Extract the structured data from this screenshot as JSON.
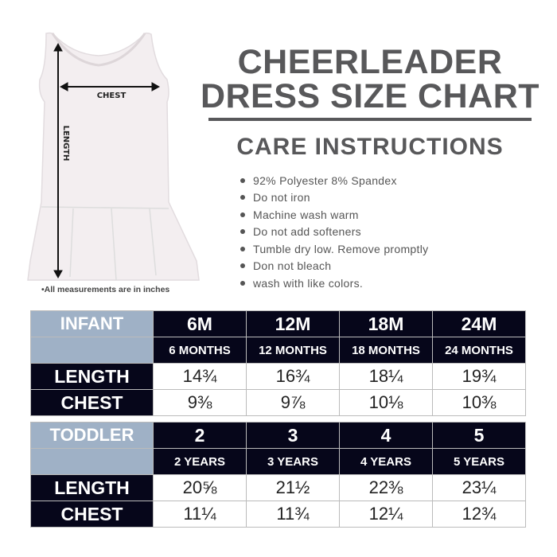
{
  "title": {
    "line1": "CHEERLEADER",
    "line2": "DRESS SIZE CHART"
  },
  "care": {
    "title": "CARE INSTRUCTIONS",
    "items": [
      "92% Polyester 8% Spandex",
      "Do not iron",
      "Machine wash warm",
      "Do not add softeners",
      "Tumble dry low. Remove promptly",
      "Don not bleach",
      "wash with like colors."
    ]
  },
  "dress": {
    "chest_label": "CHEST",
    "length_label": "LENGTH",
    "note": "•All measurements are in inches"
  },
  "infant": {
    "label": "INFANT",
    "sizes": [
      "6M",
      "12M",
      "18M",
      "24M"
    ],
    "ages": [
      "6 MONTHS",
      "12 MONTHS",
      "18 MONTHS",
      "24 MONTHS"
    ],
    "rows": [
      {
        "label": "LENGTH",
        "values": [
          "14¾",
          "16¾",
          "18¼",
          "19¾"
        ]
      },
      {
        "label": "CHEST",
        "values": [
          "9⅜",
          "9⅞",
          "10⅛",
          "10⅜"
        ]
      }
    ]
  },
  "toddler": {
    "label": "TODDLER",
    "sizes": [
      "2",
      "3",
      "4",
      "5"
    ],
    "ages": [
      "2 YEARS",
      "3 YEARS",
      "4 YEARS",
      "5 YEARS"
    ],
    "rows": [
      {
        "label": "LENGTH",
        "values": [
          "20⅝",
          "21½",
          "22⅜",
          "23¼"
        ]
      },
      {
        "label": "CHEST",
        "values": [
          "11¼",
          "11¾",
          "12¼",
          "12¾"
        ]
      }
    ]
  },
  "colors": {
    "header_dark": "#06061a",
    "header_blue": "#9fb1c6",
    "title_gray": "#58585a"
  }
}
